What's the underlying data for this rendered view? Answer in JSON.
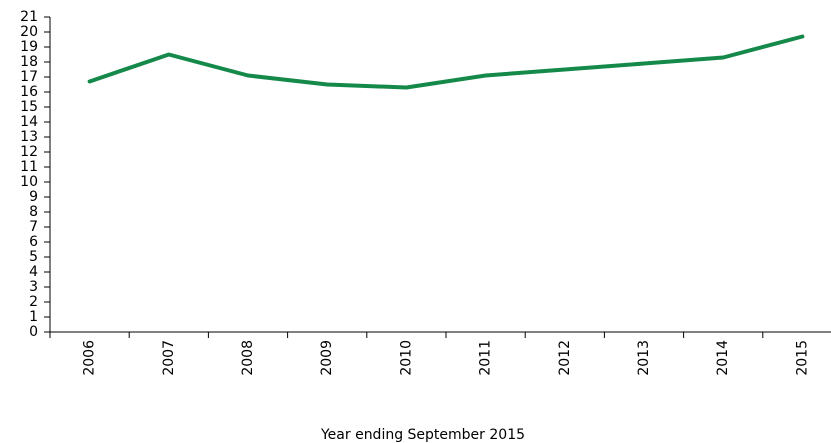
{
  "chart_data": {
    "type": "line",
    "x_label": "Year ending September 2015",
    "categories": [
      "2006",
      "2007",
      "2008",
      "2009",
      "2010",
      "2011",
      "2012",
      "2013",
      "2014",
      "2015"
    ],
    "values": [
      16.7,
      18.5,
      17.1,
      16.5,
      16.3,
      17.1,
      17.5,
      17.9,
      18.3,
      19.7
    ],
    "color": "#15894a",
    "ylim": [
      0,
      21
    ],
    "yticks": [
      0,
      1,
      2,
      3,
      4,
      5,
      6,
      7,
      8,
      9,
      10,
      11,
      12,
      13,
      14,
      15,
      16,
      17,
      18,
      19,
      20,
      21
    ],
    "grid": false
  }
}
